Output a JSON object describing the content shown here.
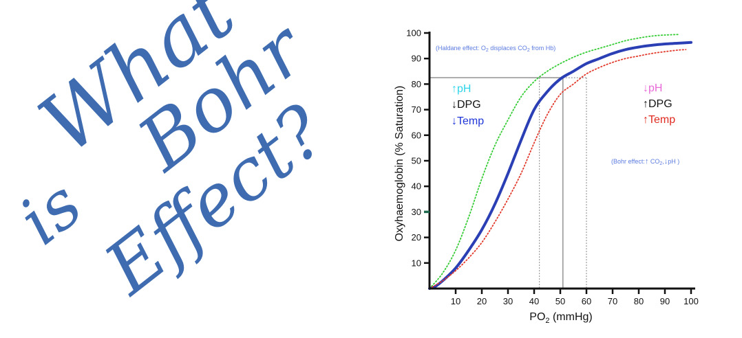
{
  "handwriting": {
    "lines": [
      "What",
      "is",
      "Bohr",
      "Effect?"
    ],
    "color": "#3f6cb0"
  },
  "chart_data": {
    "type": "line",
    "xlabel_main": "PO",
    "xlabel_sub": "2",
    "xlabel_tail": " (mmHg)",
    "ylabel": "Oxyhaemoglobin (% Saturation)",
    "xlim": [
      0,
      100
    ],
    "ylim": [
      0,
      100
    ],
    "x_ticks": [
      10,
      20,
      30,
      40,
      50,
      60,
      70,
      80,
      90,
      100
    ],
    "y_ticks": [
      10,
      20,
      30,
      40,
      50,
      60,
      70,
      80,
      90,
      100
    ],
    "p50_marker_y": 30,
    "series": [
      {
        "color": "#2b3fb5",
        "style": "solid",
        "points": [
          [
            0,
            0
          ],
          [
            2,
            0.7
          ],
          [
            5,
            3
          ],
          [
            10,
            8
          ],
          [
            15,
            15
          ],
          [
            20,
            23
          ],
          [
            25,
            33
          ],
          [
            30,
            45
          ],
          [
            35,
            58
          ],
          [
            40,
            70
          ],
          [
            45,
            77
          ],
          [
            50,
            82
          ],
          [
            55,
            85
          ],
          [
            60,
            88
          ],
          [
            65,
            90
          ],
          [
            70,
            92
          ],
          [
            75,
            93.5
          ],
          [
            80,
            94.5
          ],
          [
            85,
            95.2
          ],
          [
            90,
            95.7
          ],
          [
            95,
            96
          ],
          [
            100,
            96.3
          ]
        ]
      },
      {
        "color": "#33cc33",
        "style": "dotted",
        "points": [
          [
            0,
            0
          ],
          [
            5,
            6
          ],
          [
            10,
            15
          ],
          [
            15,
            28
          ],
          [
            20,
            43
          ],
          [
            25,
            56
          ],
          [
            30,
            66
          ],
          [
            35,
            75
          ],
          [
            40,
            81
          ],
          [
            45,
            85
          ],
          [
            50,
            88
          ],
          [
            55,
            90.5
          ],
          [
            60,
            92.5
          ],
          [
            65,
            94
          ],
          [
            70,
            95.5
          ],
          [
            75,
            97
          ],
          [
            80,
            98
          ],
          [
            85,
            98.8
          ],
          [
            90,
            99.2
          ],
          [
            95,
            99.4
          ]
        ]
      },
      {
        "color": "#e23a2c",
        "style": "dotted",
        "points": [
          [
            0,
            0
          ],
          [
            5,
            3
          ],
          [
            10,
            7
          ],
          [
            15,
            12
          ],
          [
            20,
            18
          ],
          [
            25,
            26
          ],
          [
            30,
            35
          ],
          [
            35,
            45
          ],
          [
            40,
            57
          ],
          [
            45,
            68
          ],
          [
            50,
            76
          ],
          [
            55,
            80
          ],
          [
            60,
            84
          ],
          [
            65,
            86.5
          ],
          [
            70,
            88.5
          ],
          [
            75,
            90
          ],
          [
            80,
            91
          ],
          [
            85,
            92
          ],
          [
            90,
            92.7
          ],
          [
            95,
            93.3
          ],
          [
            98,
            93.5
          ]
        ]
      }
    ],
    "reference_lines": [
      {
        "x": 51,
        "y": 82.5,
        "style": "solid",
        "color": "#9a9a9a"
      },
      {
        "x": 42,
        "y": 82.5,
        "style": "dotted",
        "color": "#9a9a9a"
      },
      {
        "x": 60,
        "y": 82.5,
        "style": "dotted",
        "color": "#9a9a9a"
      }
    ],
    "annotations": {
      "haldane": {
        "before": "(Haldane effect: O",
        "sub": "2",
        "after": " displaces CO",
        "sub2": "2",
        "tail": " from Hb)",
        "color": "#5b7be0"
      },
      "bohr": {
        "before": "(Bohr effect:",
        "arrow1": "↑",
        "mid": " CO",
        "sub": "2",
        "sep": ",",
        "arrow2": "↓",
        "tail": "pH )",
        "color": "#5b7be0"
      },
      "left_factors": [
        {
          "arrow": "↑",
          "label": "pH",
          "color": "#2fd4e8"
        },
        {
          "arrow": "↓",
          "label": "DPG",
          "color": "#111111"
        },
        {
          "arrow": "↓",
          "label": "Temp",
          "color": "#1f35d8"
        }
      ],
      "right_factors": [
        {
          "arrow": "↓",
          "label": "pH",
          "color": "#e86ad8"
        },
        {
          "arrow": "↑",
          "label": "DPG",
          "color": "#111111"
        },
        {
          "arrow": "↑",
          "label": "Temp",
          "color": "#e02a20"
        }
      ]
    }
  }
}
